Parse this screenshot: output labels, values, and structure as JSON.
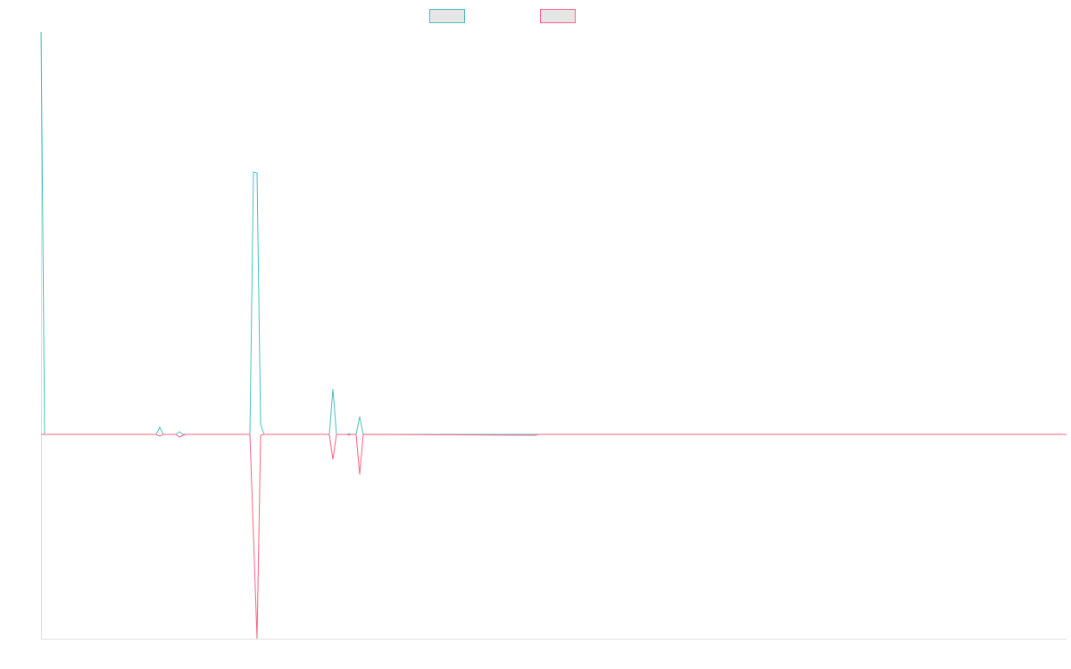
{
  "chart_data": {
    "type": "line",
    "x": [
      0,
      4,
      129,
      133,
      137,
      151,
      155,
      159,
      163,
      234,
      238,
      242,
      246,
      250,
      323,
      327,
      331,
      343,
      345,
      347,
      353,
      357,
      361,
      554,
      558,
      1149
    ],
    "series": [
      {
        "color": "#4bc0c0",
        "values": [
          451,
          0,
          0,
          8,
          0,
          0,
          3,
          0,
          0,
          0,
          294,
          293,
          11,
          0,
          0,
          51,
          0,
          0,
          1,
          0,
          0,
          20,
          0,
          0,
          0,
          0
        ]
      },
      {
        "color": "#ff6384",
        "values": [
          0,
          0,
          0,
          -2,
          0,
          0,
          -3,
          -1,
          0,
          0,
          -114,
          -229,
          -1,
          0,
          0,
          -28,
          0,
          0,
          -1,
          0,
          0,
          -45,
          0,
          -1,
          0,
          0
        ]
      }
    ],
    "xlim": [
      0,
      1149
    ],
    "ylim": [
      -229,
      451
    ]
  }
}
